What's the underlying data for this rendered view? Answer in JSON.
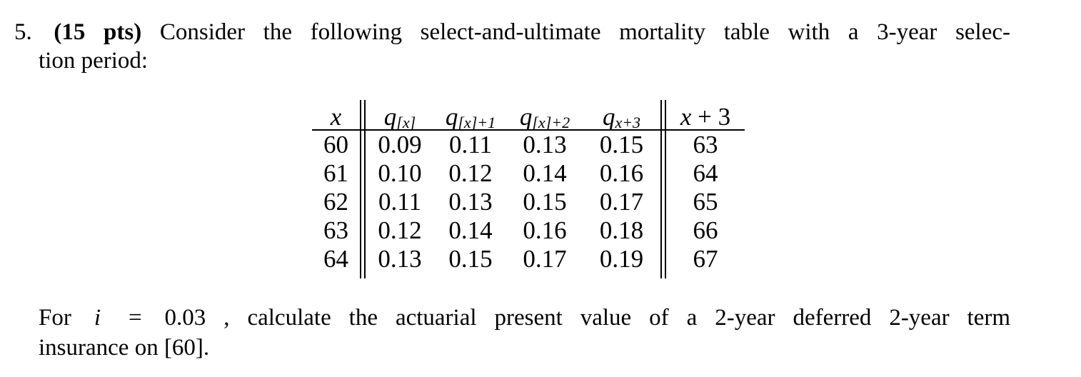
{
  "colors": {
    "background": "#ffffff",
    "text": "#000000"
  },
  "problem": {
    "number": "5.",
    "points": "(15 pts)",
    "line1_text": "Consider the following select-and-ultimate mortality table with a 3-year selec-",
    "line2_text": "tion period:"
  },
  "table": {
    "x_header": "x",
    "q_headers": [
      {
        "base": "q",
        "sub": "[x]"
      },
      {
        "base": "q",
        "sub": "[x]+1"
      },
      {
        "base": "q",
        "sub": "[x]+2"
      },
      {
        "base": "q",
        "sub": "x+3"
      }
    ],
    "x3_header": {
      "var": "x",
      "rest": "+ 3"
    },
    "rows": [
      {
        "x": "60",
        "q1": "0.09",
        "q2": "0.11",
        "q3": "0.13",
        "q4": "0.15",
        "x3": "63"
      },
      {
        "x": "61",
        "q1": "0.10",
        "q2": "0.12",
        "q3": "0.14",
        "q4": "0.16",
        "x3": "64"
      },
      {
        "x": "62",
        "q1": "0.11",
        "q2": "0.13",
        "q3": "0.15",
        "q4": "0.17",
        "x3": "65"
      },
      {
        "x": "63",
        "q1": "0.12",
        "q2": "0.14",
        "q3": "0.16",
        "q4": "0.18",
        "x3": "66"
      },
      {
        "x": "64",
        "q1": "0.13",
        "q2": "0.15",
        "q3": "0.17",
        "q4": "0.19",
        "x3": "67"
      }
    ]
  },
  "question": {
    "lead": "For",
    "var": "i",
    "equals": "=",
    "value": "0.03",
    "line1_rest": ", calculate the actuarial present value of a 2-year deferred 2-year term",
    "line2": "insurance on [60]."
  }
}
